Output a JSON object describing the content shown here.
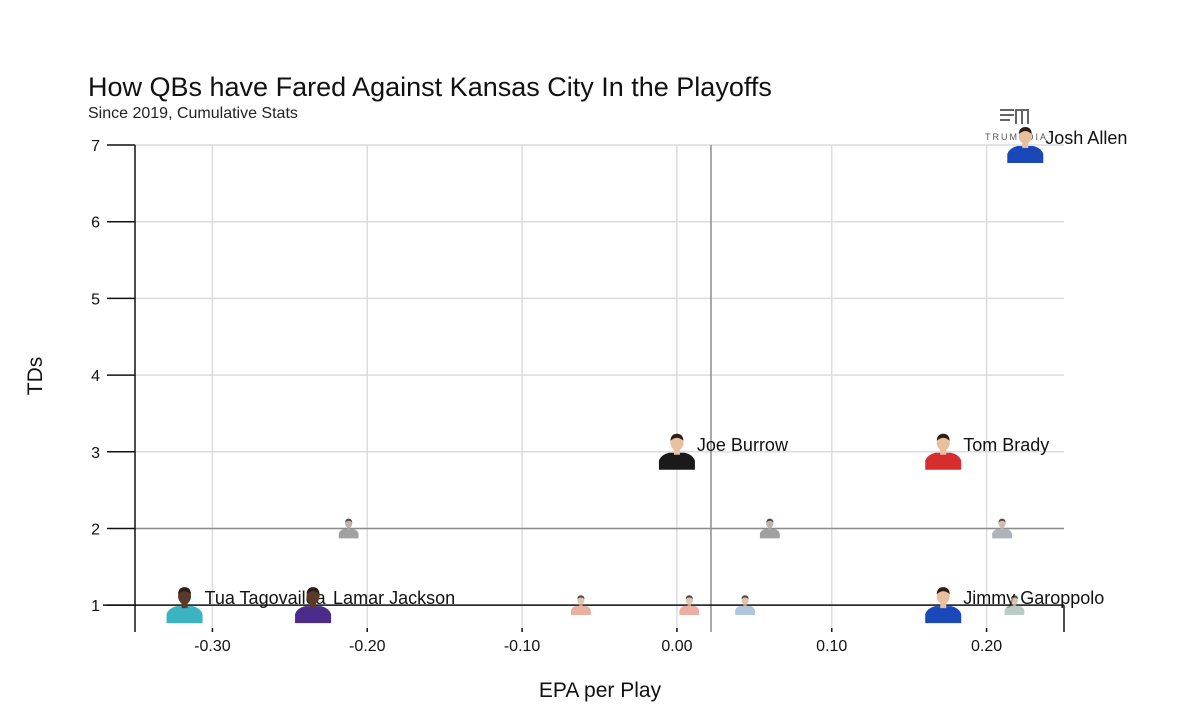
{
  "title": "How QBs have Fared Against Kansas City In the Playoffs",
  "subtitle": "Since 2019, Cumulative Stats",
  "logo_text": "TRUMEDIA",
  "chart_data": {
    "type": "scatter",
    "xlabel": "EPA per Play",
    "ylabel": "TDs",
    "xlim": [
      -0.35,
      0.25
    ],
    "ylim": [
      0.65,
      7
    ],
    "xticks": [
      -0.3,
      -0.2,
      -0.1,
      0.0,
      0.1,
      0.2
    ],
    "xtick_labels": [
      "-0.30",
      "-0.20",
      "-0.10",
      "0.00",
      "0.10",
      "0.20"
    ],
    "yticks": [
      1,
      2,
      3,
      4,
      5,
      6,
      7
    ],
    "ytick_labels": [
      "1",
      "2",
      "3",
      "4",
      "5",
      "6",
      "7"
    ],
    "grid": true,
    "reference_lines": {
      "x_mean": 0.022,
      "y_mean": 2
    },
    "points": [
      {
        "name": "Josh Allen",
        "x": 0.225,
        "y": 7,
        "jersey": "#1b48b8",
        "skin": "#e8c0a0",
        "labeled": true
      },
      {
        "name": "Joe Burrow",
        "x": 0.0,
        "y": 3,
        "jersey": "#1a1a1a",
        "skin": "#e8c0a0",
        "labeled": true
      },
      {
        "name": "Tom Brady",
        "x": 0.172,
        "y": 3,
        "jersey": "#d62e2e",
        "skin": "#e8c0a0",
        "labeled": true
      },
      {
        "name": "Tua Tagovailoa",
        "x": -0.318,
        "y": 1,
        "jersey": "#3bb3c3",
        "skin": "#5a3a2a",
        "labeled": true
      },
      {
        "name": "Lamar Jackson",
        "x": -0.235,
        "y": 1,
        "jersey": "#4b2c8a",
        "skin": "#5a3a2a",
        "labeled": true
      },
      {
        "name": "Jimmy Garoppolo",
        "x": 0.172,
        "y": 1,
        "jersey": "#1b48b8",
        "skin": "#e8c0a0",
        "labeled": true
      },
      {
        "name": "",
        "x": -0.212,
        "y": 2,
        "jersey": "#8a8a8a",
        "skin": "#b0a090",
        "labeled": false
      },
      {
        "name": "",
        "x": 0.06,
        "y": 2,
        "jersey": "#8a8a8a",
        "skin": "#b0a090",
        "labeled": false
      },
      {
        "name": "",
        "x": 0.21,
        "y": 2,
        "jersey": "#9aa0aa",
        "skin": "#c0b0a0",
        "labeled": false
      },
      {
        "name": "",
        "x": -0.062,
        "y": 1,
        "jersey": "#e89a8a",
        "skin": "#d8b8a0",
        "labeled": false
      },
      {
        "name": "",
        "x": 0.008,
        "y": 1,
        "jersey": "#e89a8a",
        "skin": "#d8b8a0",
        "labeled": false
      },
      {
        "name": "",
        "x": 0.044,
        "y": 1,
        "jersey": "#9ab8d8",
        "skin": "#d8b8a0",
        "labeled": false
      },
      {
        "name": "",
        "x": 0.218,
        "y": 1,
        "jersey": "#a8c0b8",
        "skin": "#d0b8a0",
        "labeled": false
      }
    ]
  }
}
